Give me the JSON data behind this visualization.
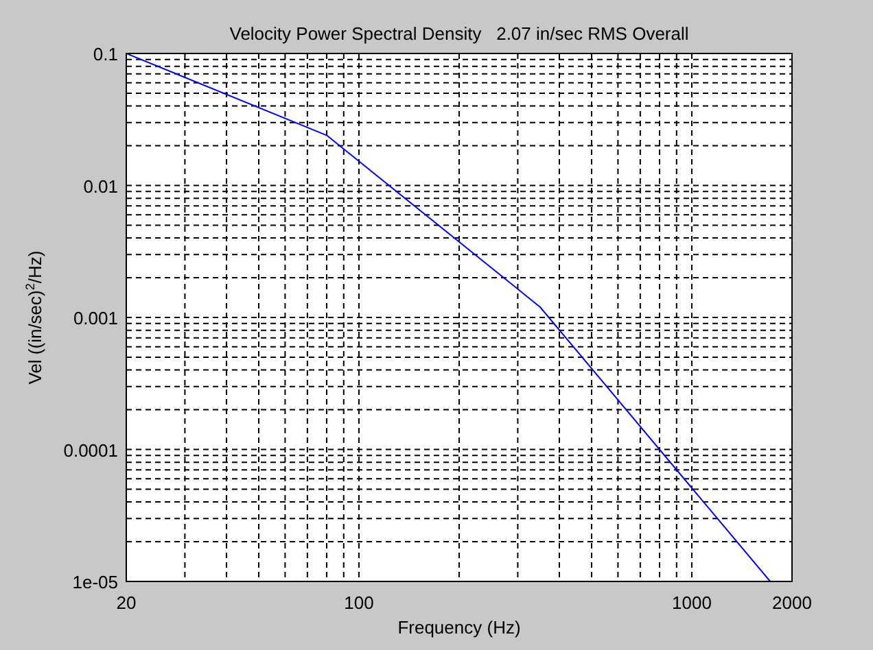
{
  "chart_data": {
    "type": "line",
    "title": "Velocity Power Spectral Density   2.07 in/sec RMS Overall",
    "xlabel": "Frequency (Hz)",
    "ylabel": "Vel ((in/sec)$^{2}$/Hz)",
    "log": "xy",
    "grid": true,
    "marker": "none",
    "line_style": "solid",
    "xlim": [
      20,
      2000
    ],
    "ylim": [
      1e-05,
      0.1
    ],
    "xticks": [
      20,
      {
        "value": 30,
        "label": null
      },
      {
        "value": 40,
        "label": null
      },
      {
        "value": 50,
        "label": null
      },
      {
        "value": 60,
        "label": null
      },
      {
        "value": 70,
        "label": null
      },
      {
        "value": 80,
        "label": null
      },
      {
        "value": 90,
        "label": null
      },
      100,
      {
        "value": 200,
        "label": null
      },
      {
        "value": 300,
        "label": null
      },
      {
        "value": 400,
        "label": null
      },
      {
        "value": 500,
        "label": null
      },
      {
        "value": 600,
        "label": null
      },
      {
        "value": 700,
        "label": null
      },
      {
        "value": 800,
        "label": null
      },
      {
        "value": 900,
        "label": null
      },
      1000,
      2000
    ],
    "yticks": [
      {
        "value": 1e-05,
        "label": "1e-05"
      },
      {
        "value": 2e-05,
        "label": null
      },
      {
        "value": 3e-05,
        "label": null
      },
      {
        "value": 4e-05,
        "label": null
      },
      {
        "value": 5e-05,
        "label": null
      },
      {
        "value": 6e-05,
        "label": null
      },
      {
        "value": 7e-05,
        "label": null
      },
      {
        "value": 8e-05,
        "label": null
      },
      {
        "value": 9e-05,
        "label": null
      },
      0.0001,
      {
        "value": 0.0002,
        "label": null
      },
      {
        "value": 0.0003,
        "label": null
      },
      {
        "value": 0.0004,
        "label": null
      },
      {
        "value": 0.0005,
        "label": null
      },
      {
        "value": 0.0006,
        "label": null
      },
      {
        "value": 0.0007,
        "label": null
      },
      {
        "value": 0.0008,
        "label": null
      },
      {
        "value": 0.0009,
        "label": null
      },
      0.001,
      {
        "value": 0.002,
        "label": null
      },
      {
        "value": 0.003,
        "label": null
      },
      {
        "value": 0.004,
        "label": null
      },
      {
        "value": 0.005,
        "label": null
      },
      {
        "value": 0.006,
        "label": null
      },
      {
        "value": 0.007,
        "label": null
      },
      {
        "value": 0.008,
        "label": null
      },
      {
        "value": 0.009,
        "label": null
      },
      0.01,
      {
        "value": 0.02,
        "label": null
      },
      {
        "value": 0.03,
        "label": null
      },
      {
        "value": 0.04,
        "label": null
      },
      {
        "value": 0.05,
        "label": null
      },
      {
        "value": 0.06,
        "label": null
      },
      {
        "value": 0.07,
        "label": null
      },
      {
        "value": 0.08,
        "label": null
      },
      {
        "value": 0.09,
        "label": null
      },
      0.1
    ],
    "series": [
      {
        "color": "#0000ff",
        "x": [
          20,
          80,
          350,
          1720
        ],
        "values": [
          0.1,
          0.024,
          0.0012,
          1e-05
        ]
      }
    ]
  }
}
